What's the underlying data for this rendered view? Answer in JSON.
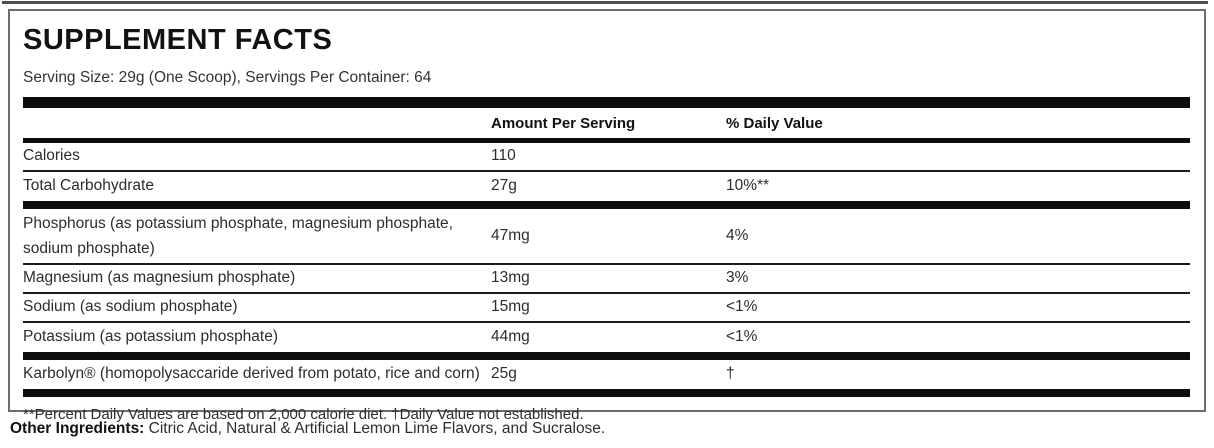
{
  "label": {
    "title": "SUPPLEMENT FACTS",
    "serving_line": "Serving Size: 29g (One Scoop), Servings Per Container: 64",
    "columns": {
      "amount_header": "Amount Per Serving",
      "dv_header": "% Daily Value"
    },
    "rows": [
      {
        "name": "Calories",
        "amount": "110",
        "dv": ""
      },
      {
        "name": "Total Carbohydrate",
        "amount": "27g",
        "dv": "10%**"
      },
      {
        "name": "Phosphorus (as potassium phosphate, magnesium phosphate, sodium phosphate)",
        "amount": "47mg",
        "dv": "4%"
      },
      {
        "name": "Magnesium (as magnesium phosphate)",
        "amount": "13mg",
        "dv": "3%"
      },
      {
        "name": "Sodium (as sodium phosphate)",
        "amount": "15mg",
        "dv": "<1%"
      },
      {
        "name": "Potassium (as potassium phosphate)",
        "amount": "44mg",
        "dv": "<1%"
      },
      {
        "name": "Karbolyn® (homopolysaccaride derived from potato, rice and corn)",
        "amount": "25g",
        "dv": "†"
      }
    ],
    "footnote": "**Percent Daily Values are based on 2,000 calorie diet. †Daily Value not established."
  },
  "other_ingredients": {
    "label": "Other Ingredients:",
    "text": " Citric Acid, Natural & Artificial Lemon Lime Flavors, and Sucralose."
  },
  "colors": {
    "bar": "#0d0d0d",
    "border": "#6e6e6e",
    "text": "#2d2d2d"
  }
}
